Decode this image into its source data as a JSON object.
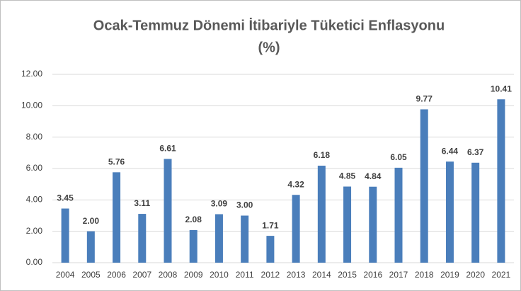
{
  "chart_data": {
    "type": "bar",
    "title": [
      "Ocak-Temmuz Dönemi İtibariyle Tüketici Enflasyonu",
      "(%)"
    ],
    "categories": [
      "2004",
      "2005",
      "2006",
      "2007",
      "2008",
      "2009",
      "2010",
      "2011",
      "2012",
      "2013",
      "2014",
      "2015",
      "2016",
      "2017",
      "2018",
      "2019",
      "2020",
      "2021"
    ],
    "values": [
      3.45,
      2.0,
      5.76,
      3.11,
      6.61,
      2.08,
      3.09,
      3.0,
      1.71,
      4.32,
      6.18,
      4.85,
      4.84,
      6.05,
      9.77,
      6.44,
      6.37,
      10.41
    ],
    "value_labels": [
      "3.45",
      "2.00",
      "5.76",
      "3.11",
      "6.61",
      "2.08",
      "3.09",
      "3.00",
      "1.71",
      "4.32",
      "6.18",
      "4.85",
      "4.84",
      "6.05",
      "9.77",
      "6.44",
      "6.37",
      "10.41"
    ],
    "color": "#4a7ebb",
    "ylim": [
      0,
      12
    ],
    "yticks": [
      {
        "value": 0,
        "label": "0.00"
      },
      {
        "value": 2,
        "label": "2.00"
      },
      {
        "value": 4,
        "label": "4.00"
      },
      {
        "value": 6,
        "label": "6.00"
      },
      {
        "value": 8,
        "label": "8.00"
      },
      {
        "value": 10,
        "label": "10.00"
      },
      {
        "value": 12,
        "label": "12.00"
      }
    ],
    "grid": true
  }
}
